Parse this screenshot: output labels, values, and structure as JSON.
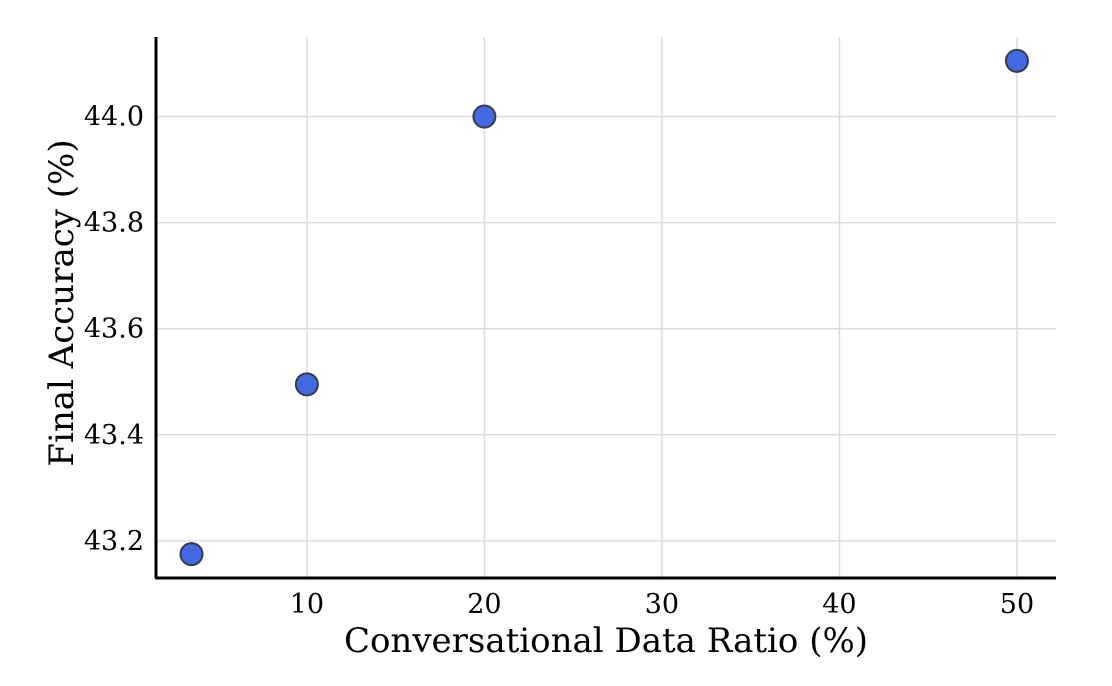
{
  "chart_data": {
    "type": "scatter",
    "title": "",
    "xlabel": "Conversational Data Ratio (%)",
    "ylabel": "Final Accuracy (%)",
    "xlim": [
      1.5,
      52.2
    ],
    "ylim": [
      43.13,
      44.15
    ],
    "xticks": [
      10,
      20,
      30,
      40,
      50
    ],
    "yticks": [
      43.2,
      43.4,
      43.6,
      43.8,
      44.0
    ],
    "xtick_labels": [
      "10",
      "20",
      "30",
      "40",
      "50"
    ],
    "ytick_labels": [
      "43.2",
      "43.4",
      "43.6",
      "43.8",
      "44.0"
    ],
    "grid": true,
    "legend": "none",
    "point_color": "#4169e1",
    "points": [
      {
        "x": 3.5,
        "y": 43.175
      },
      {
        "x": 10,
        "y": 43.495
      },
      {
        "x": 20,
        "y": 44.0
      },
      {
        "x": 50,
        "y": 44.105
      }
    ]
  }
}
